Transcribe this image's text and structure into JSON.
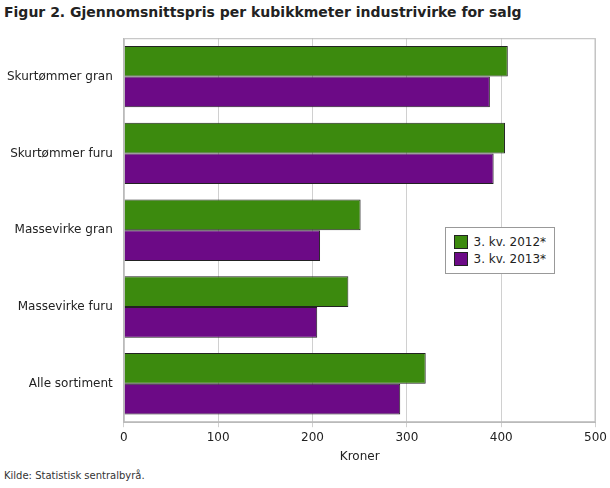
{
  "chart_data": {
    "type": "bar",
    "title": "Figur 2. Gjennomsnittspris per kubikkmeter industrivirke for salg",
    "x_label": "Kroner",
    "source": "Kilde: Statistisk sentralbyrå.",
    "orientation": "horizontal",
    "categories": [
      "Skurtømmer gran",
      "Skurtømmer furu",
      "Massevirke gran",
      "Massevirke furu",
      "Alle sortiment"
    ],
    "series": [
      {
        "name": "3. kv. 2012*",
        "color": "#3c8a0e",
        "values": [
          407,
          404,
          251,
          238,
          320
        ]
      },
      {
        "name": "3. kv. 2013*",
        "color": "#6c0a86",
        "values": [
          388,
          392,
          208,
          205,
          293
        ]
      }
    ],
    "xlim": [
      0,
      500
    ],
    "xticks": [
      0,
      100,
      200,
      300,
      400,
      500
    ],
    "grid": true,
    "legend": "right"
  }
}
